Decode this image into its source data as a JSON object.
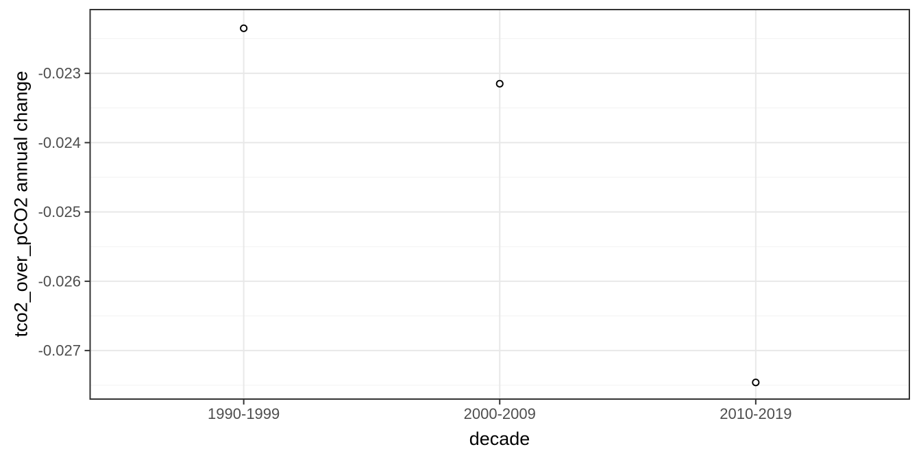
{
  "chart_data": {
    "type": "scatter",
    "title": "",
    "xlabel": "decade",
    "ylabel": "tco2_over_pCO2 annual change",
    "categories": [
      "1990-1999",
      "2000-2009",
      "2010-2019"
    ],
    "values": [
      -0.02235,
      -0.02315,
      -0.02746
    ],
    "y_ticks": [
      -0.023,
      -0.024,
      -0.025,
      -0.026,
      -0.027
    ],
    "y_tick_labels": [
      "-0.023",
      "-0.024",
      "-0.025",
      "-0.026",
      "-0.027"
    ],
    "ylim": [
      -0.0277,
      -0.02208
    ],
    "grid": {
      "y_major": true,
      "y_minor": true,
      "x_major": true,
      "x_minor": false
    },
    "legend": "none",
    "marker": "open-circle",
    "colors": {
      "background": "#ffffff",
      "panel_background": "#ffffff",
      "panel_border": "#333333",
      "grid_major": "#e8e8e8",
      "grid_minor": "#f2f2f2",
      "tick_mark": "#333333",
      "tick_label": "#4d4d4d",
      "axis_title": "#000000",
      "point_stroke": "#000000",
      "point_fill": "#ffffff"
    }
  }
}
